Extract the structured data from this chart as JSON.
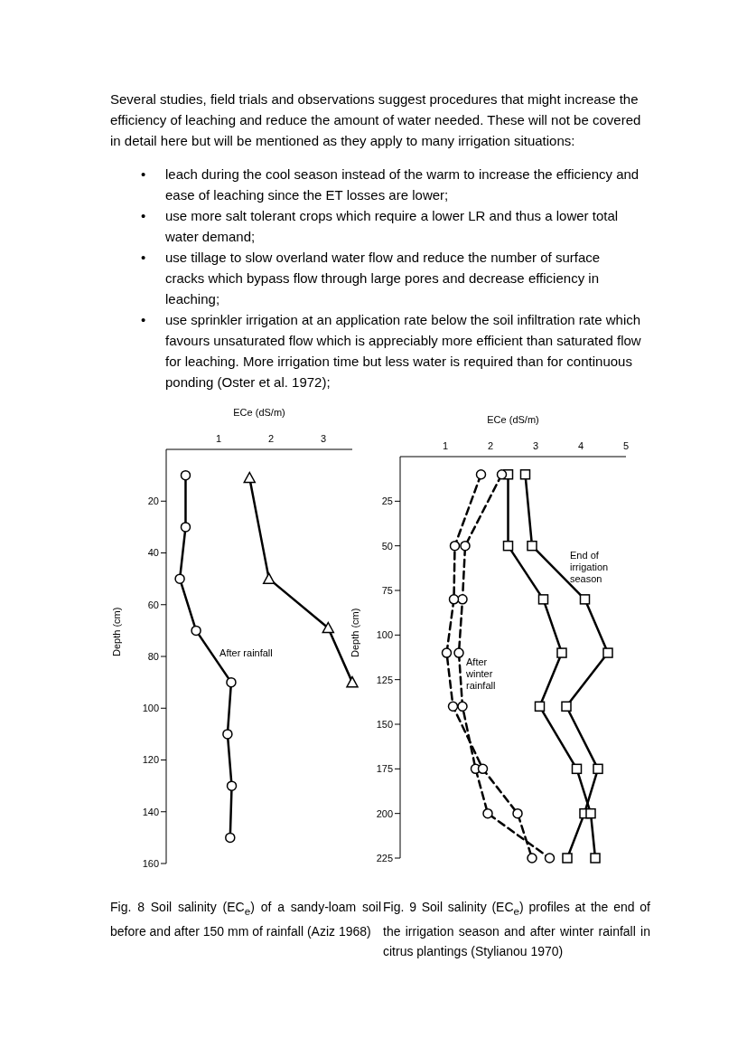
{
  "chart_data": [
    {
      "type": "other",
      "annotations": [
        "Several studies, field trials and observations suggest procedures that might increase the efficiency of leaching and reduce the amount of water needed. These will not be covered in detail here but will be mentioned as they apply to many irrigation situations:",
        "• leach during the cool season instead of the warm to increase the efficiency and ease of leaching since the ET losses are lower;",
        "• use more salt tolerant crops which require a lower LR and thus a lower total water demand;",
        "• use tillage to slow overland water flow and reduce the number of surface cracks which bypass flow through large pores and decrease efficiency in leaching;",
        "• use sprinkler irrigation at an application rate below the soil infiltration rate which favours unsaturated flow which is appreciably more efficient than saturated flow for leaching. More irrigation time but less water is required than for continuous ponding (Oster et al. 1972);"
      ]
    },
    {
      "type": "line",
      "xlabel": "ECe (dS/m)",
      "ylabel": "Depth (cm)",
      "xlim": [
        0,
        3.55
      ],
      "xticks": [
        1,
        2,
        3
      ],
      "ylim": [
        160,
        0
      ],
      "yticks": [
        20,
        40,
        60,
        80,
        100,
        120,
        140,
        160
      ],
      "series": [
        {
          "name": "After rainfall",
          "color": "#000000",
          "marker": "circle",
          "line_style": "solid",
          "x": [
            0.37,
            0.37,
            0.26,
            0.57,
            1.24,
            1.17,
            1.25,
            1.22
          ],
          "values": [
            10,
            30,
            50,
            70,
            90,
            110,
            130,
            150
          ]
        },
        {
          "color": "#000000",
          "marker": "triangle",
          "line_style": "solid",
          "x": [
            1.59,
            1.96,
            3.09,
            3.55
          ],
          "values": [
            11,
            50,
            69,
            90
          ]
        }
      ],
      "annotations": [
        "Fig. 8 Soil salinity (EC$_{e}$) of a sandy-loam soil before and after 150 mm of rainfall (Aziz 1968)"
      ]
    },
    {
      "type": "line",
      "xlabel": "ECe (dS/m)",
      "ylabel": "Depth (cm)",
      "xlim": [
        0,
        5
      ],
      "xticks": [
        1,
        2,
        3,
        4,
        5
      ],
      "ylim": [
        225,
        0
      ],
      "yticks": [
        25,
        50,
        75,
        100,
        125,
        150,
        175,
        200,
        225
      ],
      "series": [
        {
          "color": "#000000",
          "marker": "circle",
          "line_style": "dashed",
          "x": [
            1.79,
            1.21,
            1.19,
            1.03,
            1.17,
            1.83,
            2.6,
            2.92
          ],
          "values": [
            10,
            50,
            80,
            110,
            140,
            175,
            200,
            225
          ]
        },
        {
          "name": "After\nwinter\nrainfall",
          "color": "#000000",
          "marker": "circle",
          "line_style": "dashed",
          "x": [
            2.25,
            1.44,
            1.38,
            1.3,
            1.38,
            1.67,
            1.94,
            3.31
          ],
          "values": [
            10,
            50,
            80,
            110,
            140,
            175,
            200,
            225
          ]
        },
        {
          "color": "#000000",
          "marker": "square",
          "line_style": "solid",
          "x": [
            2.39,
            2.39,
            3.17,
            3.58,
            3.09,
            3.91,
            4.22,
            4.32
          ],
          "values": [
            10,
            50,
            80,
            110,
            140,
            175,
            200,
            225
          ]
        },
        {
          "name": "End of\nirrigation\nseason",
          "color": "#000000",
          "marker": "square",
          "line_style": "solid",
          "x": [
            2.77,
            2.92,
            4.09,
            4.6,
            3.68,
            4.38,
            4.08,
            3.7
          ],
          "values": [
            10,
            50,
            80,
            110,
            140,
            175,
            200,
            225
          ]
        }
      ],
      "annotations": [
        "Fig. 9 Soil salinity (EC$_{e}$) profiles at the end of the irrigation season and after winter rainfall in citrus plantings (Stylianou 1970)"
      ]
    }
  ]
}
